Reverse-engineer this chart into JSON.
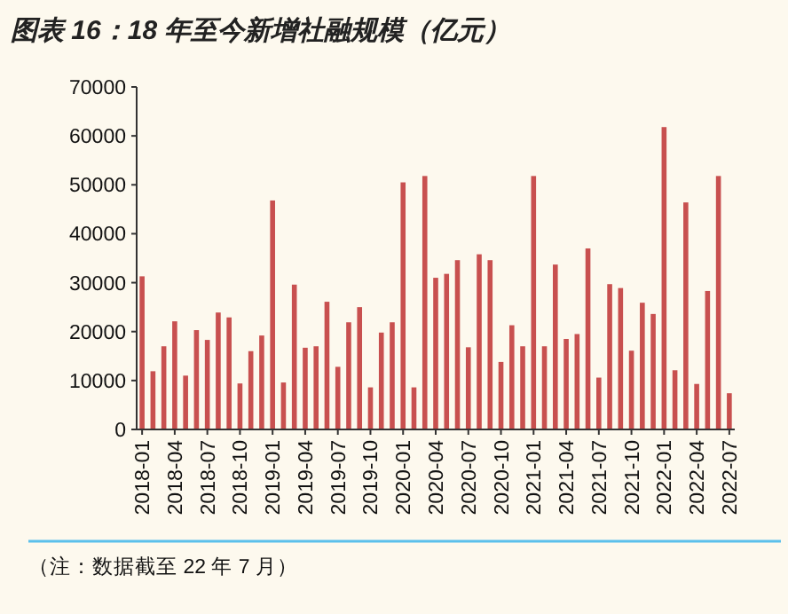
{
  "chart_data": {
    "type": "bar",
    "title": "图表 16：18 年至今新增社融规模（亿元）",
    "categories": [
      "2018-01",
      null,
      null,
      "2018-04",
      null,
      null,
      "2018-07",
      null,
      null,
      "2018-10",
      null,
      null,
      "2019-01",
      null,
      null,
      "2019-04",
      null,
      null,
      "2019-07",
      null,
      null,
      "2019-10",
      null,
      null,
      "2020-01",
      null,
      null,
      "2020-04",
      null,
      null,
      "2020-07",
      null,
      null,
      "2020-10",
      null,
      null,
      "2021-01",
      null,
      null,
      "2021-04",
      null,
      null,
      "2021-07",
      null,
      null,
      "2021-10",
      null,
      null,
      "2022-01",
      null,
      null,
      "2022-04",
      null,
      null,
      "2022-07"
    ],
    "values": [
      31300,
      11900,
      17000,
      22100,
      11000,
      20300,
      18300,
      23900,
      22900,
      9400,
      16000,
      19200,
      46800,
      9600,
      29600,
      16700,
      17000,
      26100,
      12800,
      21900,
      25000,
      8600,
      19800,
      21900,
      50500,
      8600,
      51800,
      31000,
      31800,
      34600,
      16800,
      35800,
      34600,
      13800,
      21300,
      17000,
      51800,
      17000,
      33700,
      18500,
      19500,
      37000,
      10600,
      29700,
      28900,
      16100,
      25900,
      23600,
      61800,
      12100,
      46400,
      9300,
      28300,
      51800,
      7400
    ],
    "color": "#c8504f",
    "ylim": [
      0,
      70000
    ],
    "yticks": [
      0,
      10000,
      20000,
      30000,
      40000,
      50000,
      60000,
      70000
    ],
    "grid": false,
    "annotations": [
      "（注：数据截至 22 年 7 月）"
    ]
  }
}
